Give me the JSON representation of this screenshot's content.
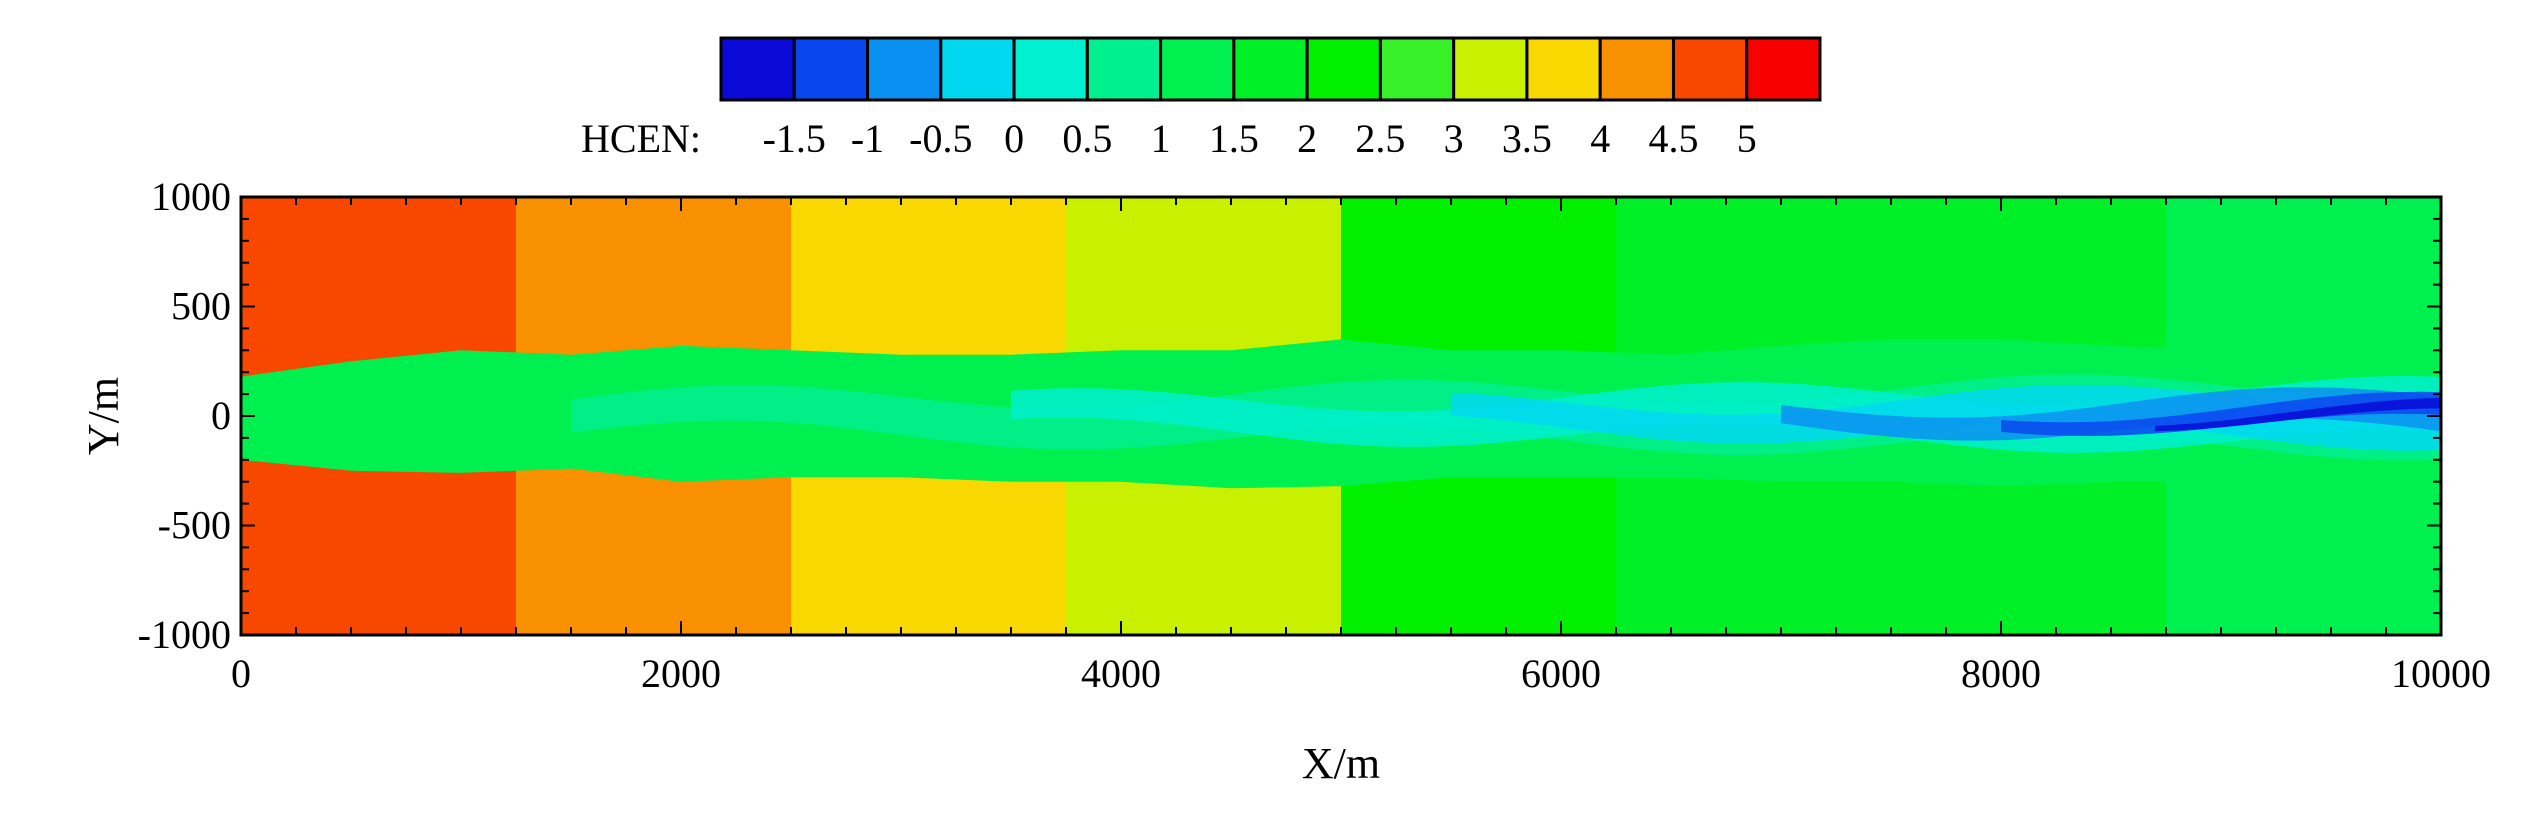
{
  "chart_data": {
    "type": "heatmap",
    "title": "",
    "xlabel": "X/m",
    "ylabel": "Y/m",
    "xlim": [
      0,
      10000
    ],
    "ylim": [
      -1000,
      1000
    ],
    "x_ticks": [
      0,
      2000,
      4000,
      6000,
      8000,
      10000
    ],
    "x_tick_labels": [
      "0",
      "2000",
      "4000",
      "6000",
      "8000",
      "10000"
    ],
    "y_ticks": [
      1000,
      500,
      0,
      -500,
      -1000
    ],
    "y_tick_labels": [
      "1000",
      "500",
      "0",
      "-500",
      "-1000"
    ],
    "grid": false,
    "colorbar": {
      "title": "HCEN:",
      "placement": "top",
      "tick_labels": [
        "-1.5",
        "-1",
        "-0.5",
        "0",
        "0.5",
        "1",
        "1.5",
        "2",
        "2.5",
        "3",
        "3.5",
        "4",
        "4.5",
        "5"
      ],
      "colors": [
        "#0a0ad8",
        "#0a46f0",
        "#0a90f0",
        "#00d8f0",
        "#00f0d0",
        "#00f090",
        "#00f050",
        "#00f028",
        "#00f000",
        "#38f028",
        "#c8f000",
        "#f8d800",
        "#f89000",
        "#f84800",
        "#f80000"
      ]
    },
    "background_bands": [
      {
        "x_range": [
          0,
          1250
        ],
        "value": 4.5,
        "color": "#f84800"
      },
      {
        "x_range": [
          1250,
          2500
        ],
        "value": 4.0,
        "color": "#f89000"
      },
      {
        "x_range": [
          2500,
          3750
        ],
        "value": 3.5,
        "color": "#f8d800"
      },
      {
        "x_range": [
          3750,
          5000
        ],
        "value": 3.0,
        "color": "#c8f000"
      },
      {
        "x_range": [
          5000,
          6250
        ],
        "value": 2.5,
        "color": "#00f000"
      },
      {
        "x_range": [
          6250,
          7500
        ],
        "value": 2.0,
        "color": "#00f028"
      },
      {
        "x_range": [
          7500,
          8750
        ],
        "value": 2.0,
        "color": "#00f028"
      },
      {
        "x_range": [
          8750,
          10000
        ],
        "value": 1.5,
        "color": "#00f050"
      }
    ],
    "plume": {
      "x": [
        0,
        500,
        1000,
        1500,
        2000,
        2500,
        3000,
        3500,
        4000,
        4500,
        5000,
        5500,
        6000,
        6500,
        7000,
        7500,
        8000,
        8500,
        9000,
        9500,
        10000
      ],
      "upper_y": [
        180,
        250,
        300,
        280,
        320,
        300,
        280,
        280,
        300,
        300,
        350,
        300,
        300,
        280,
        320,
        350,
        350,
        320,
        300,
        320,
        300
      ],
      "lower_y": [
        -200,
        -250,
        -260,
        -240,
        -300,
        -280,
        -280,
        -300,
        -300,
        -330,
        -320,
        -280,
        -280,
        -280,
        -300,
        -300,
        -320,
        -300,
        -300,
        -280,
        -280
      ],
      "value": 1.5,
      "color": "#00f050",
      "note_colors": [
        "#00f090",
        "#00f0d0",
        "#00d8f0",
        "#0a90f0",
        "#0a46f0",
        "#0a0ad8"
      ]
    }
  }
}
